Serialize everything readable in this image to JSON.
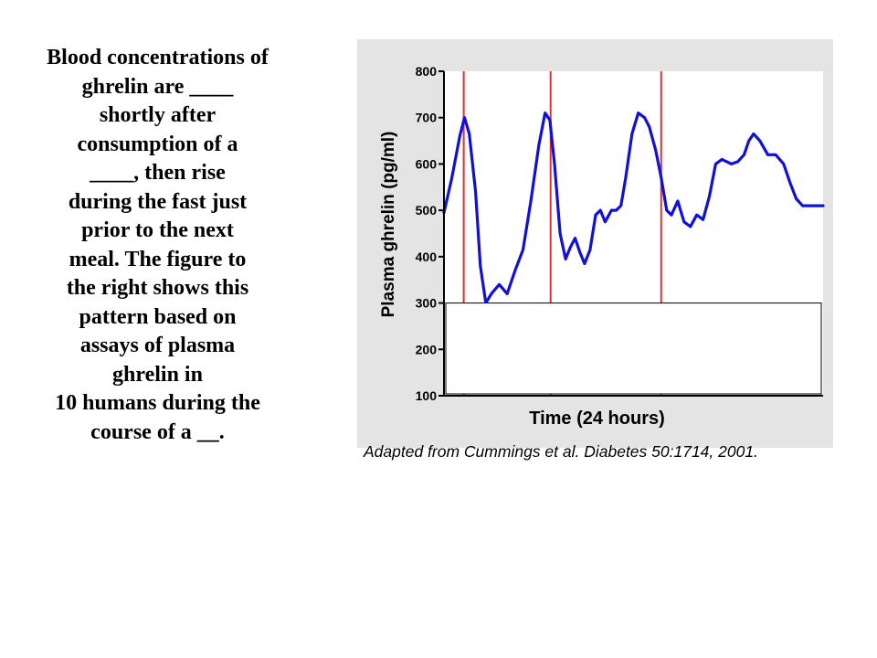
{
  "slide_text": {
    "lines": [
      "Blood concentrations of",
      "ghrelin are ____",
      "shortly after",
      "consumption of a",
      "____, then rise",
      "during the fast just",
      "prior to the next",
      "meal. The figure to",
      "the right shows this",
      "pattern based on",
      "assays of plasma",
      "ghrelin in",
      "10 humans during the",
      "course of a __."
    ]
  },
  "caption": "Adapted from Cummings et al.  Diabetes 50:1714, 2001.",
  "colors": {
    "panel_bg": "#e4e4e4",
    "plot_bg": "#ffffff",
    "series": "#1010dd",
    "meal_lines": "#e03030",
    "axis": "#000000"
  },
  "chart_data": {
    "type": "line",
    "title": "",
    "xlabel": "Time (24 hours)",
    "ylabel": "Plasma ghrelin (pg/ml)",
    "ylim": [
      100,
      800
    ],
    "yticks": [
      100,
      200,
      300,
      400,
      500,
      600,
      700,
      800
    ],
    "xlim": [
      0,
      24
    ],
    "grid": false,
    "legend": "none",
    "meal_times": [
      1.25,
      6.75,
      13.75
    ],
    "series": [
      {
        "name": "",
        "x": [
          0,
          0.5,
          1.0,
          1.3,
          1.6,
          2.0,
          2.3,
          2.65,
          3.0,
          3.5,
          4.0,
          4.5,
          5.0,
          5.5,
          6.0,
          6.4,
          6.7,
          7.0,
          7.35,
          7.7,
          8.0,
          8.3,
          8.6,
          8.9,
          9.25,
          9.6,
          9.9,
          10.2,
          10.6,
          10.9,
          11.2,
          11.5,
          11.9,
          12.3,
          12.7,
          13.0,
          13.4,
          13.75,
          14.1,
          14.4,
          14.8,
          15.2,
          15.6,
          16.0,
          16.4,
          16.8,
          17.2,
          17.6,
          17.9,
          18.2,
          18.6,
          19.0,
          19.3,
          19.6,
          20.0,
          20.5,
          21.0,
          21.5,
          21.9,
          22.3,
          22.7,
          23.1,
          23.5,
          24.0
        ],
        "values": [
          495,
          570,
          660,
          700,
          665,
          540,
          380,
          300,
          320,
          340,
          320,
          370,
          415,
          520,
          640,
          710,
          695,
          600,
          450,
          395,
          420,
          440,
          410,
          385,
          415,
          490,
          500,
          475,
          500,
          500,
          510,
          570,
          665,
          710,
          700,
          680,
          630,
          570,
          500,
          490,
          520,
          475,
          465,
          490,
          480,
          530,
          600,
          610,
          605,
          600,
          605,
          620,
          650,
          665,
          650,
          620,
          620,
          600,
          560,
          525,
          510,
          510,
          510,
          510
        ]
      }
    ],
    "masked_region": {
      "y_from": 100,
      "y_to": 300
    }
  }
}
